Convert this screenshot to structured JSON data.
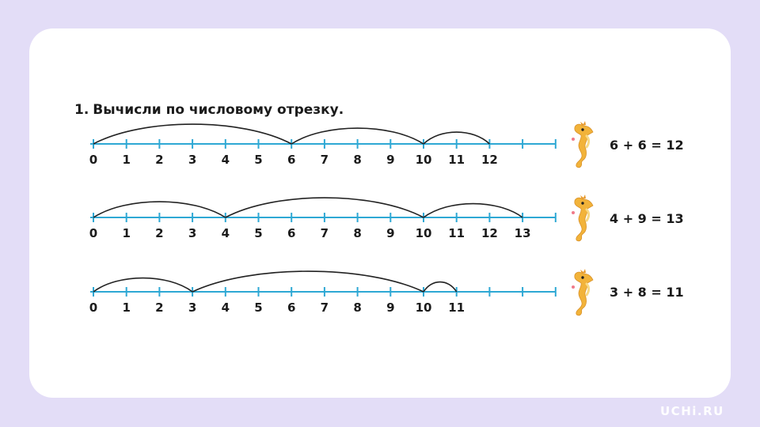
{
  "task": {
    "number": "1.",
    "text": "Вычисли по числовому отрезку."
  },
  "colors": {
    "line": "#2ea8d4",
    "arc": "#222222",
    "text": "#1b1b1b",
    "seahorse_body": "#f2b33a",
    "seahorse_belly": "#f8d985",
    "background": "#e3ddf7"
  },
  "icons": [
    "seahorse-icon"
  ],
  "number_lines": [
    {
      "labels": [
        "0",
        "1",
        "2",
        "3",
        "4",
        "5",
        "6",
        "7",
        "8",
        "9",
        "10",
        "11",
        "12"
      ],
      "jumps": [
        [
          0,
          6
        ],
        [
          6,
          10
        ],
        [
          10,
          12
        ]
      ],
      "equation": "6 + 6 = 12"
    },
    {
      "labels": [
        "0",
        "1",
        "2",
        "3",
        "4",
        "5",
        "6",
        "7",
        "8",
        "9",
        "10",
        "11",
        "12",
        "13"
      ],
      "jumps": [
        [
          0,
          4
        ],
        [
          4,
          10
        ],
        [
          10,
          13
        ]
      ],
      "equation": "4 + 9 = 13"
    },
    {
      "labels": [
        "0",
        "1",
        "2",
        "3",
        "4",
        "5",
        "6",
        "7",
        "8",
        "9",
        "10",
        "11"
      ],
      "jumps": [
        [
          0,
          3
        ],
        [
          3,
          10
        ],
        [
          10,
          11
        ]
      ],
      "equation": "3 + 8 = 11"
    }
  ],
  "brand": "UCHi.RU"
}
